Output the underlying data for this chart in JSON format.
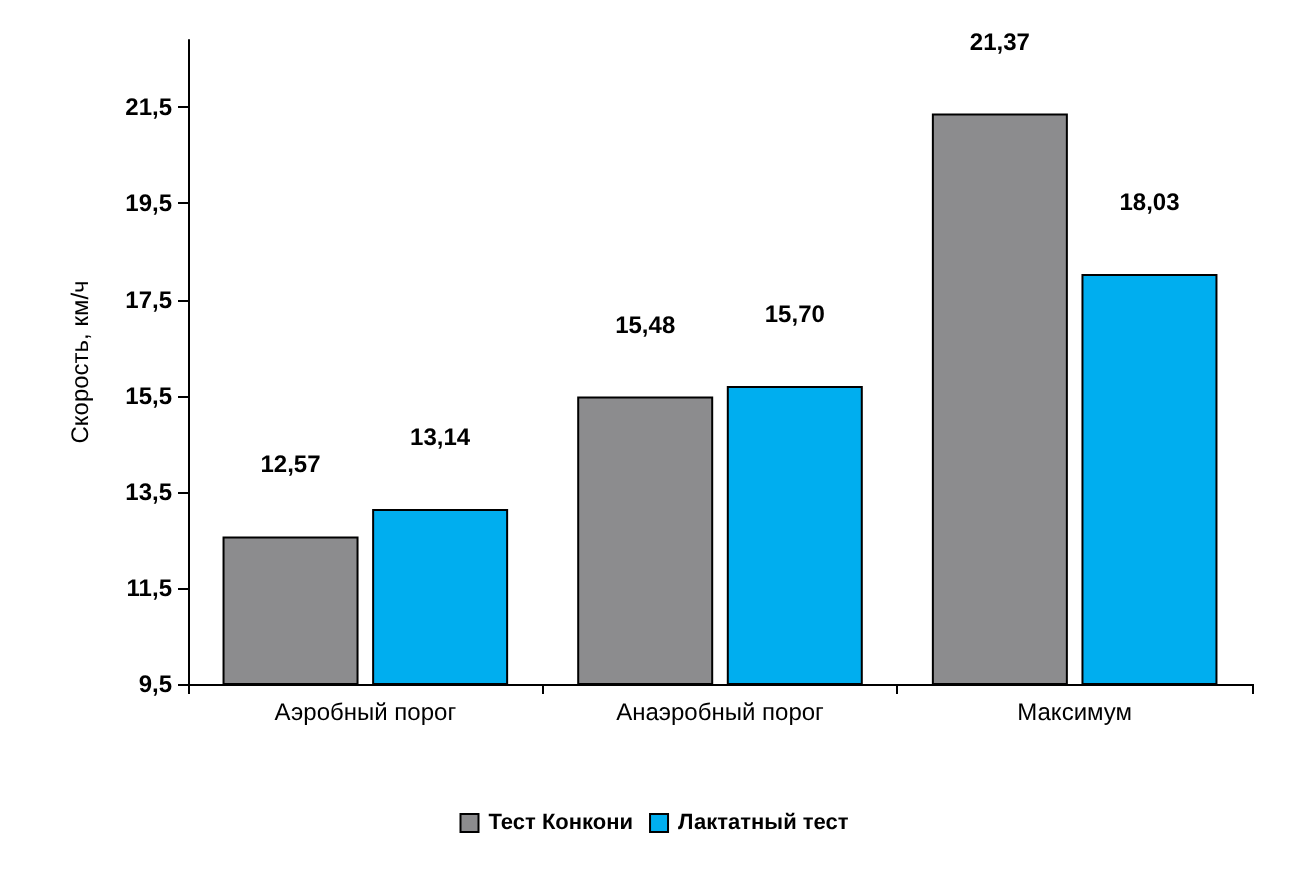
{
  "chart_data": {
    "type": "bar",
    "ylabel": "Скорость, км/ч",
    "categories": [
      "Аэробный порог",
      "Анаэробный порог",
      "Максимум"
    ],
    "series": [
      {
        "name": "Тест Конкони",
        "color": "#8c8c8e",
        "values": [
          12.57,
          15.48,
          21.37
        ],
        "value_labels": [
          "12,57",
          "15,48",
          "21,37"
        ]
      },
      {
        "name": "Лактатный тест",
        "color": "#00aeef",
        "values": [
          13.14,
          15.7,
          18.03
        ],
        "value_labels": [
          "13,14",
          "15,70",
          "18,03"
        ]
      }
    ],
    "ylim": [
      9.5,
      22.9
    ],
    "yticks": [
      {
        "value": 9.5,
        "label": "9,5"
      },
      {
        "value": 11.5,
        "label": "11,5"
      },
      {
        "value": 13.5,
        "label": "13,5"
      },
      {
        "value": 15.5,
        "label": "15,5"
      },
      {
        "value": 17.5,
        "label": "17,5"
      },
      {
        "value": 19.5,
        "label": "19,5"
      },
      {
        "value": 21.5,
        "label": "21,5"
      }
    ],
    "grid": false,
    "legend": "bottom"
  }
}
